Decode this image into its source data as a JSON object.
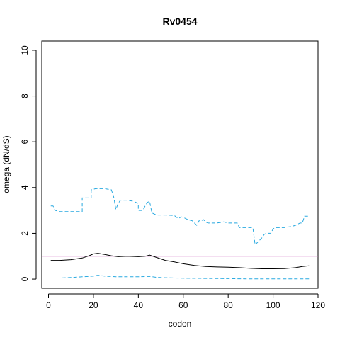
{
  "chart_data": {
    "type": "line",
    "title": "Rv0454",
    "xlabel": "codon",
    "ylabel": "omega (dN/dS)",
    "xlim": [
      -3,
      120
    ],
    "ylim": [
      -0.4,
      10.4
    ],
    "xticks": [
      0,
      20,
      40,
      60,
      80,
      100,
      120
    ],
    "yticks": [
      0,
      2,
      4,
      6,
      8,
      10
    ],
    "grid": false,
    "reference_line": {
      "y": 1.0,
      "color": "#d17ac8"
    },
    "series": [
      {
        "role": "upper",
        "color": "#29a9e0",
        "dash": "dashed",
        "points": [
          [
            1,
            3.2
          ],
          [
            2,
            3.2
          ],
          [
            3,
            3.0
          ],
          [
            5,
            2.95
          ],
          [
            7,
            2.95
          ],
          [
            10,
            2.95
          ],
          [
            13,
            2.95
          ],
          [
            15,
            2.95
          ],
          [
            15,
            3.55
          ],
          [
            17,
            3.55
          ],
          [
            19,
            3.55
          ],
          [
            19,
            3.9
          ],
          [
            21,
            3.95
          ],
          [
            25,
            3.95
          ],
          [
            28,
            3.9
          ],
          [
            29,
            3.6
          ],
          [
            30,
            3.05
          ],
          [
            31,
            3.3
          ],
          [
            32,
            3.45
          ],
          [
            35,
            3.45
          ],
          [
            38,
            3.4
          ],
          [
            40,
            3.3
          ],
          [
            40,
            3.0
          ],
          [
            42,
            3.0
          ],
          [
            43,
            3.2
          ],
          [
            44,
            3.35
          ],
          [
            45,
            3.4
          ],
          [
            46,
            2.9
          ],
          [
            47,
            2.85
          ],
          [
            48,
            2.8
          ],
          [
            52,
            2.8
          ],
          [
            56,
            2.78
          ],
          [
            57,
            2.7
          ],
          [
            58,
            2.65
          ],
          [
            59,
            2.72
          ],
          [
            60,
            2.7
          ],
          [
            62,
            2.6
          ],
          [
            64,
            2.55
          ],
          [
            65,
            2.45
          ],
          [
            66,
            2.35
          ],
          [
            67,
            2.55
          ],
          [
            68,
            2.55
          ],
          [
            69,
            2.6
          ],
          [
            70,
            2.5
          ],
          [
            71,
            2.45
          ],
          [
            72,
            2.45
          ],
          [
            75,
            2.45
          ],
          [
            78,
            2.5
          ],
          [
            80,
            2.45
          ],
          [
            84,
            2.45
          ],
          [
            85,
            2.25
          ],
          [
            88,
            2.25
          ],
          [
            91,
            2.25
          ],
          [
            92,
            1.5
          ],
          [
            93,
            1.6
          ],
          [
            94,
            1.7
          ],
          [
            95,
            1.8
          ],
          [
            96,
            1.95
          ],
          [
            97,
            2.0
          ],
          [
            99,
            2.0
          ],
          [
            100,
            2.2
          ],
          [
            101,
            2.25
          ],
          [
            105,
            2.25
          ],
          [
            108,
            2.3
          ],
          [
            110,
            2.35
          ],
          [
            112,
            2.45
          ],
          [
            113,
            2.45
          ],
          [
            114,
            2.75
          ],
          [
            116,
            2.75
          ]
        ]
      },
      {
        "role": "estimate",
        "color": "#000000",
        "dash": "solid",
        "points": [
          [
            1,
            0.82
          ],
          [
            5,
            0.82
          ],
          [
            10,
            0.85
          ],
          [
            15,
            0.92
          ],
          [
            18,
            1.02
          ],
          [
            20,
            1.1
          ],
          [
            22,
            1.13
          ],
          [
            25,
            1.08
          ],
          [
            28,
            1.02
          ],
          [
            31,
            0.98
          ],
          [
            35,
            1.0
          ],
          [
            40,
            0.98
          ],
          [
            43,
            1.0
          ],
          [
            45,
            1.05
          ],
          [
            48,
            0.95
          ],
          [
            52,
            0.82
          ],
          [
            56,
            0.75
          ],
          [
            60,
            0.67
          ],
          [
            65,
            0.6
          ],
          [
            70,
            0.55
          ],
          [
            75,
            0.53
          ],
          [
            80,
            0.52
          ],
          [
            85,
            0.5
          ],
          [
            90,
            0.47
          ],
          [
            95,
            0.45
          ],
          [
            100,
            0.45
          ],
          [
            105,
            0.46
          ],
          [
            110,
            0.5
          ],
          [
            113,
            0.55
          ],
          [
            116,
            0.58
          ]
        ]
      },
      {
        "role": "lower",
        "color": "#29a9e0",
        "dash": "dashed",
        "points": [
          [
            1,
            0.05
          ],
          [
            5,
            0.05
          ],
          [
            10,
            0.07
          ],
          [
            15,
            0.1
          ],
          [
            20,
            0.13
          ],
          [
            22,
            0.17
          ],
          [
            25,
            0.13
          ],
          [
            30,
            0.1
          ],
          [
            35,
            0.1
          ],
          [
            40,
            0.1
          ],
          [
            45,
            0.12
          ],
          [
            48,
            0.08
          ],
          [
            52,
            0.06
          ],
          [
            60,
            0.04
          ],
          [
            70,
            0.03
          ],
          [
            80,
            0.02
          ],
          [
            90,
            0.01
          ],
          [
            100,
            0.01
          ],
          [
            110,
            0.01
          ],
          [
            116,
            0.01
          ]
        ]
      }
    ]
  }
}
